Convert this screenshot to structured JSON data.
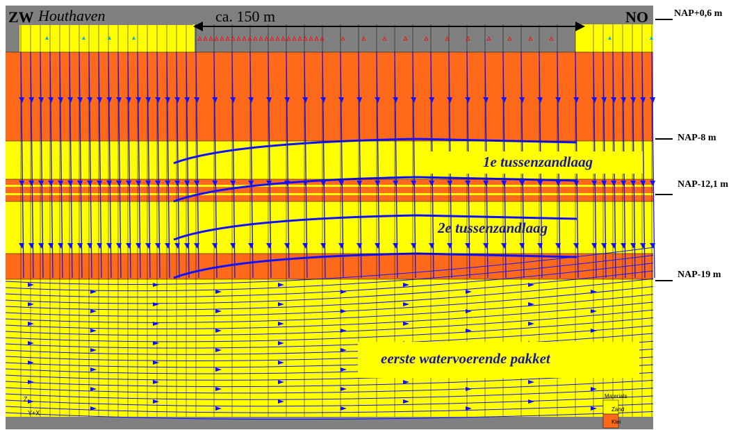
{
  "header": {
    "left": "ZW",
    "place": "Houthaven",
    "distance": "ca. 150 m",
    "right": "NO"
  },
  "levels": [
    "NAP+0,6 m",
    "NAP-8 m",
    "NAP-12,1 m",
    "NAP-19 m"
  ],
  "layers": [
    "1e tussenzandlaag",
    "2e tussenzandlaag",
    "eerste watervoerende pakket"
  ],
  "legend": {
    "title": "Materials",
    "items": [
      "Zand",
      "Klei"
    ]
  },
  "axes": {
    "z": "Z",
    "yx": "Y+X"
  }
}
